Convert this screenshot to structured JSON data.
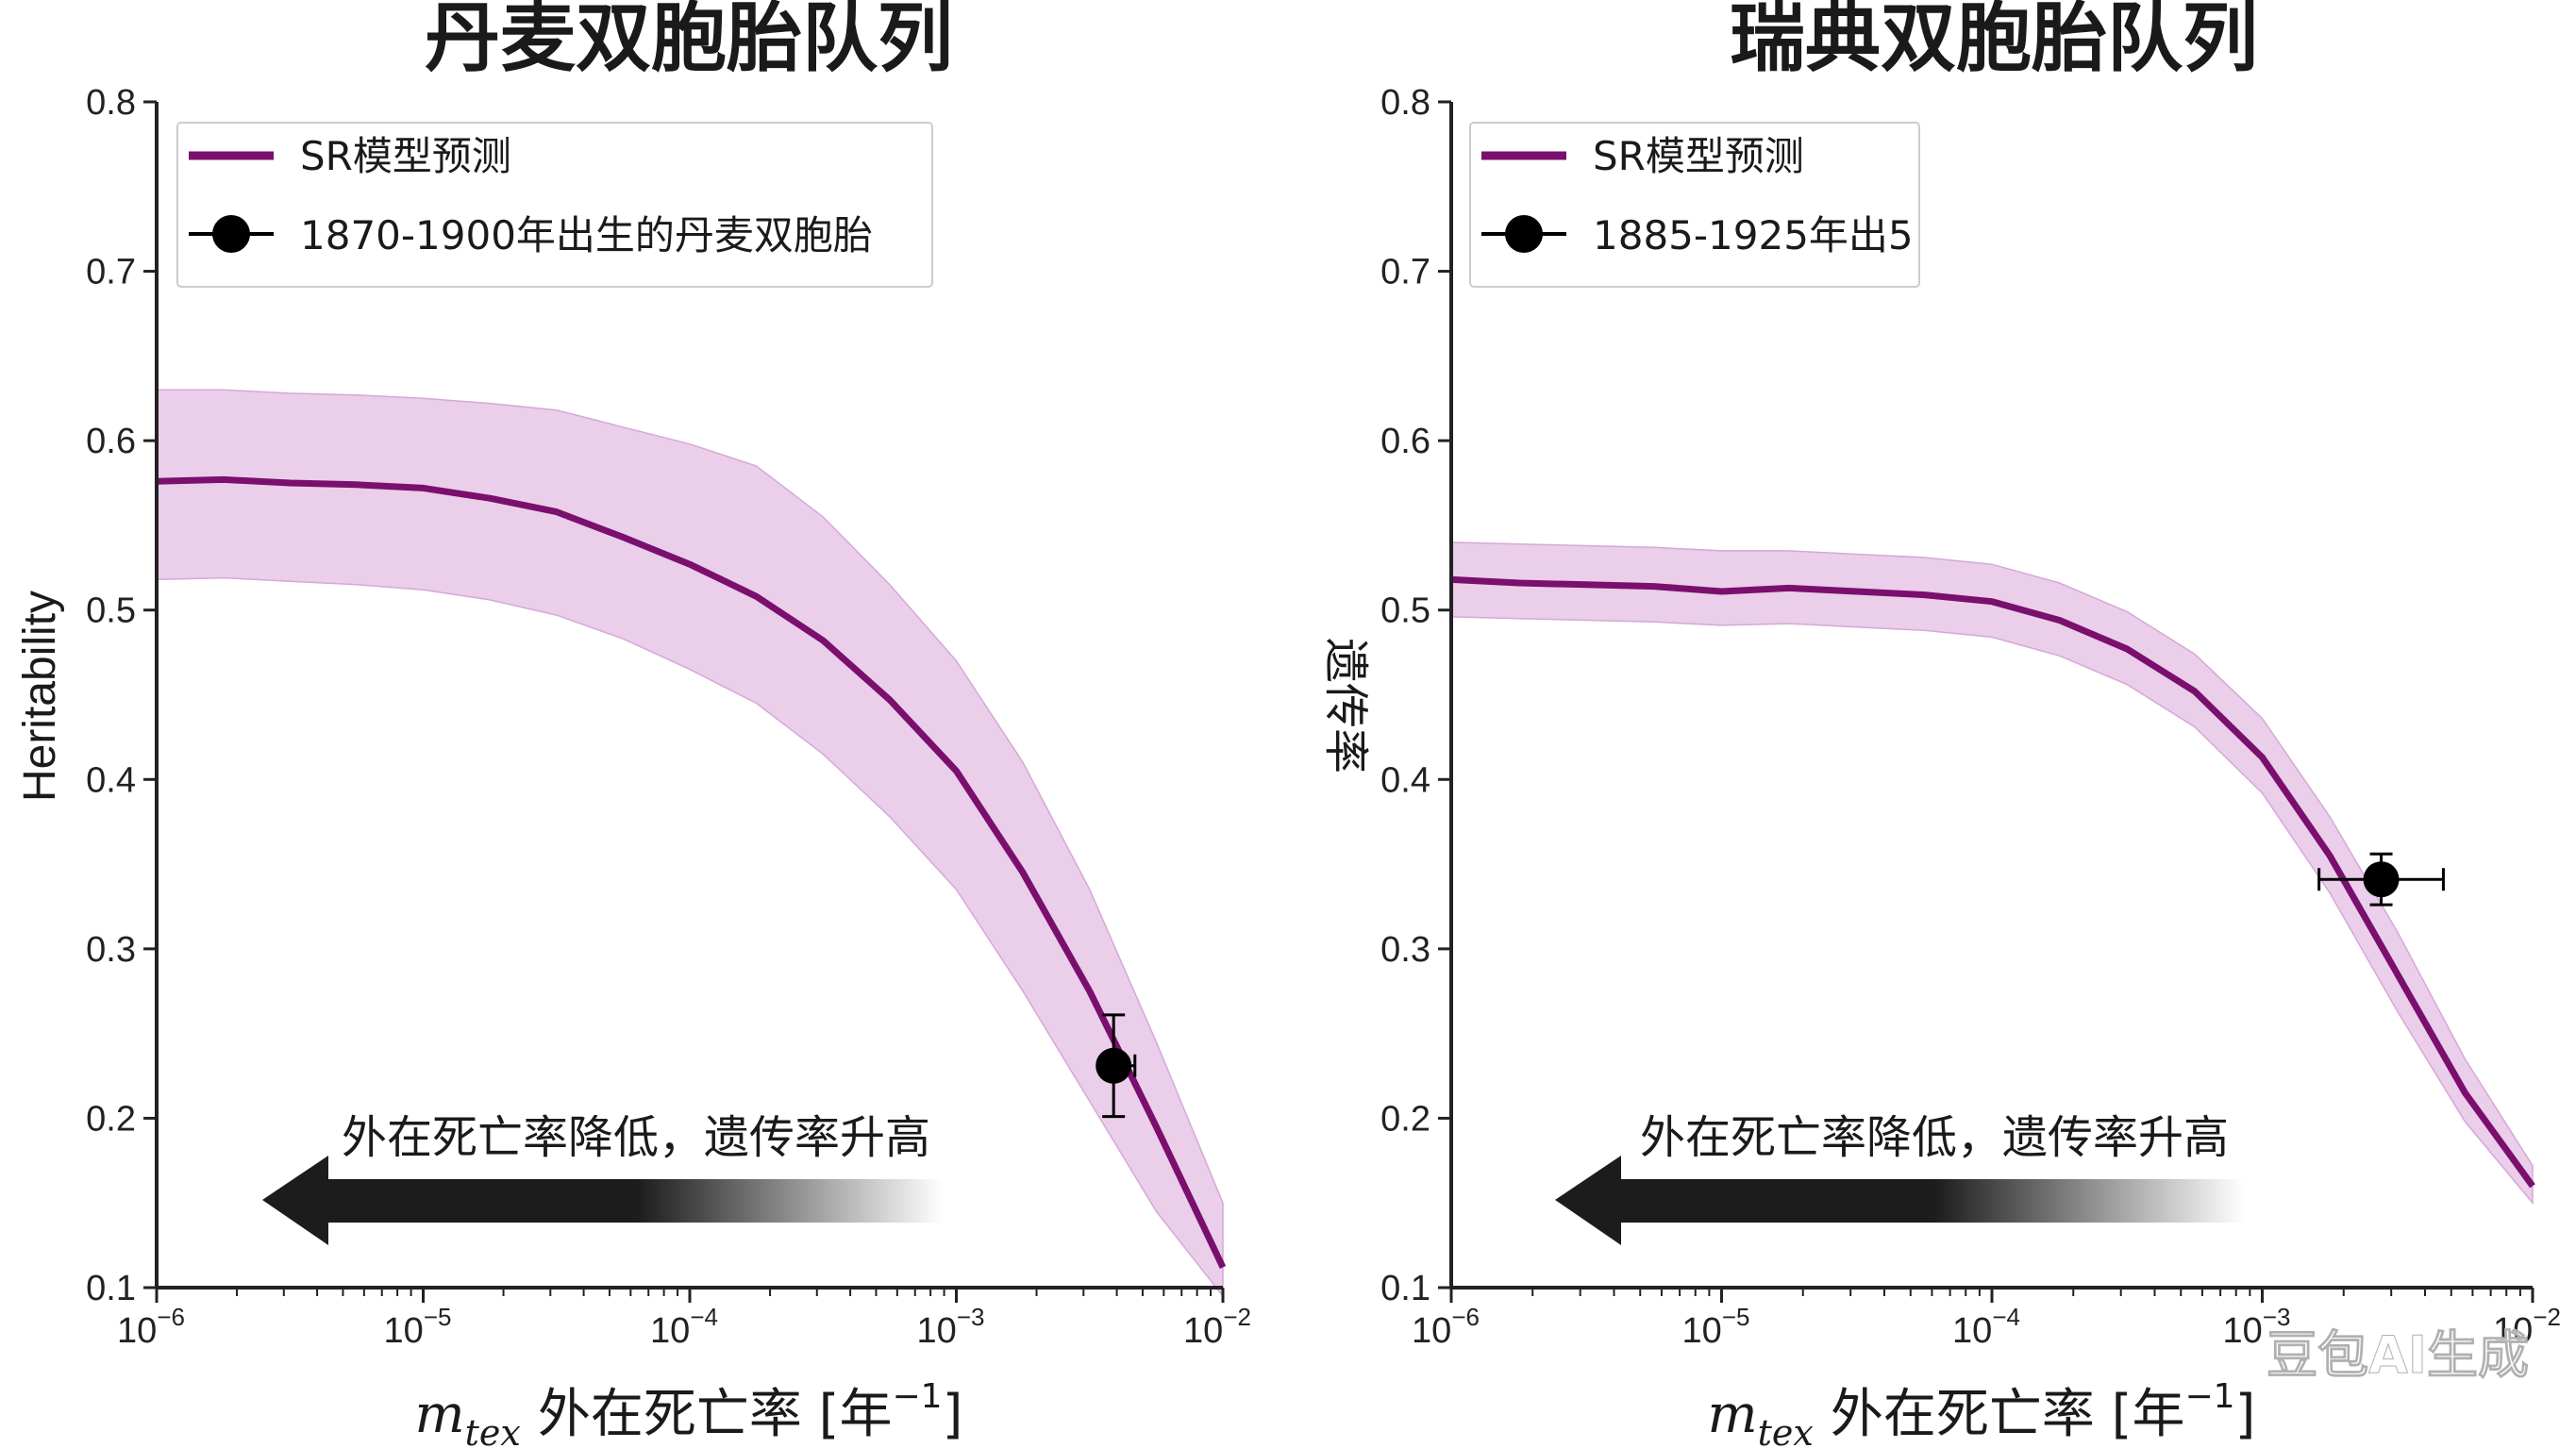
{
  "colors": {
    "line": "#7a0f6e",
    "band": "#e6c6e6",
    "band_edge": "#d6a8d8",
    "point": "#000000",
    "axis": "#222222",
    "arrow_dark": "#1c1c1c"
  },
  "watermark": "豆包AI生成",
  "chart_data": [
    {
      "type": "line",
      "id": "left",
      "title": "丹麦双胞胎队列",
      "ylabel": "Heritability",
      "xlabel_var": "m",
      "xlabel_sub": "tex",
      "xlabel_text": "外在死亡率 [年",
      "xlabel_sup": "−1",
      "xlabel_close": "]",
      "xscale": "log",
      "xlim_exp": [
        -6,
        -2
      ],
      "ylim": [
        0.1,
        0.8
      ],
      "yticks": [
        "0.1",
        "0.2",
        "0.3",
        "0.4",
        "0.5",
        "0.6",
        "0.7",
        "0.8"
      ],
      "xtick_base": "10",
      "xtick_exps": [
        "−6",
        "−5",
        "−4",
        "−3",
        "−2"
      ],
      "arrow_text": "外在死亡率降低，遗传率升高",
      "legend": {
        "position": "top-left",
        "line_label": "SR模型预测",
        "point_label": "1870-1900年出生的丹麦双胞胎"
      },
      "series": [
        {
          "name": "SR模型预测",
          "log10_x": [
            -6.0,
            -5.75,
            -5.5,
            -5.25,
            -5.0,
            -4.75,
            -4.5,
            -4.25,
            -4.0,
            -3.75,
            -3.5,
            -3.25,
            -3.0,
            -2.75,
            -2.5,
            -2.25,
            -2.0
          ],
          "y": [
            0.576,
            0.577,
            0.575,
            0.574,
            0.572,
            0.566,
            0.558,
            0.543,
            0.527,
            0.508,
            0.482,
            0.447,
            0.405,
            0.345,
            0.275,
            0.195,
            0.112
          ],
          "y_low": [
            0.518,
            0.519,
            0.517,
            0.515,
            0.512,
            0.506,
            0.497,
            0.483,
            0.465,
            0.445,
            0.415,
            0.378,
            0.335,
            0.275,
            0.21,
            0.145,
            0.095
          ],
          "y_high": [
            0.63,
            0.63,
            0.628,
            0.627,
            0.625,
            0.622,
            0.618,
            0.608,
            0.598,
            0.585,
            0.555,
            0.515,
            0.47,
            0.41,
            0.335,
            0.245,
            0.15
          ]
        }
      ],
      "points": [
        {
          "label": "1870-1900年出生的丹麦双胞胎",
          "log10_x": -2.41,
          "y": 0.231,
          "y_err_low": 0.03,
          "y_err_high": 0.03,
          "x_err_log_low": 0.0,
          "x_err_log_high": 0.08
        }
      ]
    },
    {
      "type": "line",
      "id": "right",
      "title": "瑞典双胞胎队列",
      "ylabel": "遗传率",
      "xlabel_var": "m",
      "xlabel_sub": "tex",
      "xlabel_text": "外在死亡率  [年",
      "xlabel_sup": "−1",
      "xlabel_close": "]",
      "xscale": "log",
      "xlim_exp": [
        -6,
        -2
      ],
      "ylim": [
        0.1,
        0.8
      ],
      "yticks": [
        "0.1",
        "0.2",
        "0.3",
        "0.4",
        "0.5",
        "0.6",
        "0.7",
        "0.8"
      ],
      "xtick_base": "10",
      "xtick_exps": [
        "−6",
        "−5",
        "−4",
        "−3",
        "−2"
      ],
      "arrow_text": "外在死亡率降低，遗传率升高",
      "legend": {
        "position": "top-left",
        "line_label": "SR模型预测",
        "point_label": "1885-1925年出5"
      },
      "series": [
        {
          "name": "SR模型预测",
          "log10_x": [
            -6.0,
            -5.75,
            -5.5,
            -5.25,
            -5.0,
            -4.75,
            -4.5,
            -4.25,
            -4.0,
            -3.75,
            -3.5,
            -3.25,
            -3.0,
            -2.75,
            -2.5,
            -2.25,
            -2.0
          ],
          "y": [
            0.518,
            0.516,
            0.515,
            0.514,
            0.511,
            0.513,
            0.511,
            0.509,
            0.505,
            0.494,
            0.477,
            0.452,
            0.413,
            0.355,
            0.285,
            0.215,
            0.16
          ],
          "y_low": [
            0.496,
            0.495,
            0.494,
            0.493,
            0.491,
            0.492,
            0.49,
            0.488,
            0.484,
            0.473,
            0.456,
            0.431,
            0.392,
            0.333,
            0.263,
            0.198,
            0.15
          ],
          "y_high": [
            0.54,
            0.539,
            0.538,
            0.537,
            0.535,
            0.535,
            0.533,
            0.531,
            0.527,
            0.516,
            0.499,
            0.474,
            0.436,
            0.378,
            0.31,
            0.235,
            0.172
          ]
        }
      ],
      "points": [
        {
          "label": "1885-1925年出5",
          "log10_x": -2.56,
          "y": 0.341,
          "y_err_low": 0.015,
          "y_err_high": 0.015,
          "x_err_log_low": 0.23,
          "x_err_log_high": 0.23
        }
      ]
    }
  ]
}
